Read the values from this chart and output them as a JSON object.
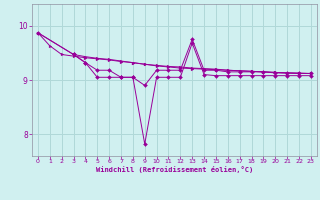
{
  "bg_color": "#d0f0f0",
  "grid_color": "#b0d8d8",
  "line_color": "#990099",
  "xlabel": "Windchill (Refroidissement éolien,°C)",
  "xlim": [
    -0.5,
    23.5
  ],
  "ylim": [
    7.6,
    10.4
  ],
  "yticks": [
    8,
    9,
    10
  ],
  "xticks": [
    0,
    1,
    2,
    3,
    4,
    5,
    6,
    7,
    8,
    9,
    10,
    11,
    12,
    13,
    14,
    15,
    16,
    17,
    18,
    19,
    20,
    21,
    22,
    23
  ],
  "s1_x": [
    0,
    1,
    2,
    3,
    4,
    5,
    6,
    7,
    8,
    9,
    10,
    11,
    12,
    13,
    14,
    15,
    16,
    17,
    18,
    19,
    20,
    21,
    22,
    23
  ],
  "s1_y": [
    9.87,
    9.63,
    9.47,
    9.44,
    9.41,
    9.39,
    9.37,
    9.34,
    9.32,
    9.29,
    9.27,
    9.25,
    9.24,
    9.22,
    9.21,
    9.2,
    9.18,
    9.17,
    9.16,
    9.15,
    9.14,
    9.13,
    9.13,
    9.12
  ],
  "s2_x": [
    0,
    3,
    4,
    5,
    6,
    7,
    8,
    9,
    10,
    11,
    12,
    13,
    14,
    15,
    16,
    17,
    18,
    19,
    20,
    21,
    22,
    23
  ],
  "s2_y": [
    9.87,
    9.47,
    9.43,
    9.4,
    9.38,
    9.35,
    9.32,
    9.29,
    9.26,
    9.24,
    9.22,
    9.21,
    9.2,
    9.19,
    9.18,
    9.17,
    9.16,
    9.15,
    9.14,
    9.13,
    9.12,
    9.12
  ],
  "s3_x": [
    0,
    3,
    4,
    5,
    6,
    7,
    8,
    9,
    10,
    11,
    12,
    13,
    14,
    15,
    16,
    17,
    18,
    19,
    20,
    21,
    22,
    23
  ],
  "s3_y": [
    9.87,
    9.47,
    9.32,
    9.18,
    9.18,
    9.05,
    9.05,
    8.9,
    9.18,
    9.18,
    9.18,
    9.75,
    9.18,
    9.18,
    9.15,
    9.15,
    9.15,
    9.15,
    9.13,
    9.13,
    9.12,
    9.12
  ],
  "s4_x": [
    3,
    4,
    5,
    6,
    7,
    8,
    9,
    10,
    11,
    12,
    13,
    14,
    15,
    16,
    17,
    18,
    19,
    20,
    21,
    22,
    23
  ],
  "s4_y": [
    9.47,
    9.32,
    9.05,
    9.05,
    9.05,
    9.05,
    7.82,
    9.05,
    9.05,
    9.05,
    9.68,
    9.1,
    9.08,
    9.08,
    9.08,
    9.08,
    9.08,
    9.08,
    9.08,
    9.08,
    9.08
  ]
}
